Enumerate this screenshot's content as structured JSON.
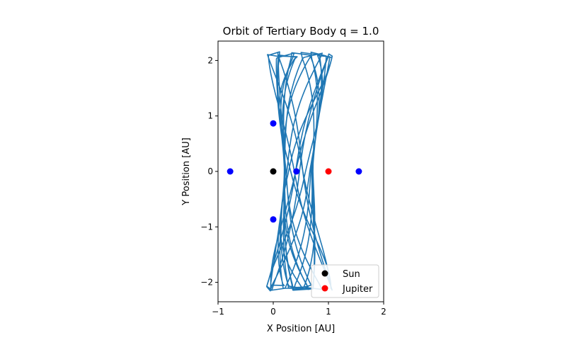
{
  "chart_data": {
    "type": "scatter",
    "title": "Orbit of Tertiary Body q = 1.0",
    "xlabel": "X Position [AU]",
    "ylabel": "Y Position [AU]",
    "xlim": [
      -1,
      2
    ],
    "ylim": [
      -2.35,
      2.35
    ],
    "xticks": [
      -1,
      0,
      1,
      2
    ],
    "yticks": [
      -2,
      -1,
      0,
      1,
      2
    ],
    "grid": false,
    "legend_position": "lower-right",
    "orbit": {
      "color": "#1f77b4",
      "x_left_edge_at_y2": -0.1,
      "x_right_edge_at_y2": 1.05,
      "x_left_edge_at_y0": 0.2,
      "x_right_edge_at_y0": 0.72,
      "y_range": [
        -2.1,
        2.1
      ]
    },
    "points": [
      {
        "x": 0,
        "y": 0,
        "color": "#000000"
      },
      {
        "x": 1,
        "y": 0,
        "color": "#ff0000"
      },
      {
        "x": 0,
        "y": 0.866,
        "color": "#0000ff"
      },
      {
        "x": 0,
        "y": -0.866,
        "color": "#0000ff"
      },
      {
        "x": -0.78,
        "y": 0,
        "color": "#0000ff"
      },
      {
        "x": 0.42,
        "y": 0,
        "color": "#0000ff"
      },
      {
        "x": 1.55,
        "y": 0,
        "color": "#0000ff"
      }
    ],
    "legend": [
      {
        "label": "Sun",
        "color": "#000000"
      },
      {
        "label": "Jupiter",
        "color": "#ff0000"
      }
    ]
  }
}
